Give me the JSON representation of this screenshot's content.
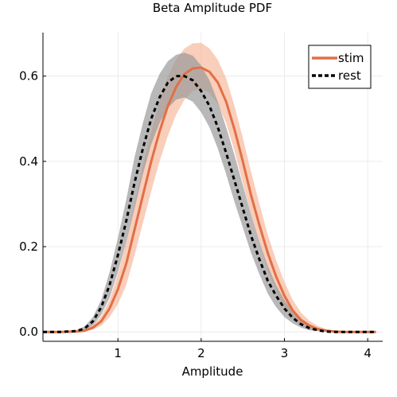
{
  "chart_data": {
    "type": "line",
    "title": "Beta Amplitude PDF",
    "xlabel": "Amplitude",
    "ylabel": "",
    "xlim": [
      0.1,
      4.18
    ],
    "ylim": [
      -0.022,
      0.702
    ],
    "x_ticks": [
      1,
      2,
      3,
      4
    ],
    "x_tick_labels": [
      "1",
      "2",
      "3",
      "4"
    ],
    "y_ticks": [
      0.0,
      0.2,
      0.4,
      0.6
    ],
    "y_tick_labels": [
      "0.0",
      "0.2",
      "0.4",
      "0.6"
    ],
    "grid": true,
    "legend_position": "top-right",
    "series": [
      {
        "name": "stim",
        "color": "#e26f46",
        "band_color": "#f4a582",
        "style": "solid",
        "x": [
          0.1,
          0.3,
          0.5,
          0.6,
          0.7,
          0.8,
          0.9,
          1.0,
          1.1,
          1.2,
          1.3,
          1.4,
          1.5,
          1.6,
          1.7,
          1.8,
          1.9,
          2.0,
          2.1,
          2.2,
          2.3,
          2.4,
          2.5,
          2.6,
          2.7,
          2.8,
          2.9,
          3.0,
          3.1,
          3.2,
          3.3,
          3.4,
          3.5,
          3.6,
          3.7,
          3.8,
          4.0,
          4.1
        ],
        "values": [
          0,
          0,
          0.001,
          0.003,
          0.01,
          0.025,
          0.055,
          0.1,
          0.16,
          0.24,
          0.32,
          0.4,
          0.47,
          0.53,
          0.575,
          0.605,
          0.618,
          0.62,
          0.61,
          0.585,
          0.54,
          0.475,
          0.4,
          0.32,
          0.25,
          0.185,
          0.13,
          0.085,
          0.05,
          0.028,
          0.015,
          0.007,
          0.003,
          0.001,
          0,
          0,
          0,
          0
        ],
        "lower": [
          0,
          0,
          0,
          0.001,
          0.005,
          0.015,
          0.035,
          0.065,
          0.11,
          0.18,
          0.255,
          0.33,
          0.4,
          0.46,
          0.51,
          0.545,
          0.565,
          0.57,
          0.56,
          0.535,
          0.49,
          0.425,
          0.35,
          0.275,
          0.205,
          0.145,
          0.095,
          0.055,
          0.03,
          0.014,
          0.006,
          0.002,
          0.001,
          0,
          0,
          0,
          0,
          0
        ],
        "upper": [
          0,
          0,
          0.002,
          0.006,
          0.016,
          0.037,
          0.075,
          0.135,
          0.21,
          0.3,
          0.39,
          0.47,
          0.54,
          0.6,
          0.64,
          0.665,
          0.677,
          0.678,
          0.665,
          0.638,
          0.595,
          0.53,
          0.455,
          0.375,
          0.3,
          0.228,
          0.168,
          0.117,
          0.075,
          0.045,
          0.026,
          0.014,
          0.007,
          0.003,
          0.001,
          0,
          0,
          0
        ]
      },
      {
        "name": "rest",
        "color": "#000000",
        "band_color": "#9a9a9a",
        "style": "dashed",
        "x": [
          0.1,
          0.3,
          0.5,
          0.6,
          0.7,
          0.8,
          0.9,
          1.0,
          1.1,
          1.2,
          1.3,
          1.4,
          1.5,
          1.6,
          1.7,
          1.8,
          1.9,
          2.0,
          2.1,
          2.2,
          2.3,
          2.4,
          2.5,
          2.6,
          2.7,
          2.8,
          2.9,
          3.0,
          3.1,
          3.2,
          3.3,
          3.4,
          3.5,
          3.6,
          3.7,
          3.8,
          4.0,
          4.1
        ],
        "values": [
          0,
          0,
          0.002,
          0.008,
          0.025,
          0.058,
          0.11,
          0.18,
          0.26,
          0.35,
          0.43,
          0.5,
          0.55,
          0.585,
          0.6,
          0.6,
          0.59,
          0.565,
          0.53,
          0.48,
          0.42,
          0.355,
          0.29,
          0.225,
          0.17,
          0.12,
          0.085,
          0.055,
          0.033,
          0.018,
          0.009,
          0.004,
          0.001,
          0,
          0,
          0,
          0,
          0
        ],
        "lower": [
          0,
          0,
          0,
          0.004,
          0.015,
          0.04,
          0.08,
          0.14,
          0.21,
          0.29,
          0.37,
          0.44,
          0.49,
          0.525,
          0.545,
          0.55,
          0.54,
          0.515,
          0.48,
          0.43,
          0.37,
          0.305,
          0.245,
          0.185,
          0.135,
          0.09,
          0.058,
          0.035,
          0.02,
          0.01,
          0.004,
          0.002,
          0,
          0,
          0,
          0,
          0,
          0
        ],
        "upper": [
          0,
          0.001,
          0.004,
          0.013,
          0.035,
          0.075,
          0.14,
          0.22,
          0.31,
          0.41,
          0.49,
          0.56,
          0.605,
          0.635,
          0.65,
          0.655,
          0.648,
          0.625,
          0.59,
          0.54,
          0.48,
          0.415,
          0.345,
          0.275,
          0.21,
          0.155,
          0.11,
          0.075,
          0.048,
          0.03,
          0.017,
          0.009,
          0.004,
          0.002,
          0.001,
          0,
          0,
          0
        ]
      }
    ]
  }
}
